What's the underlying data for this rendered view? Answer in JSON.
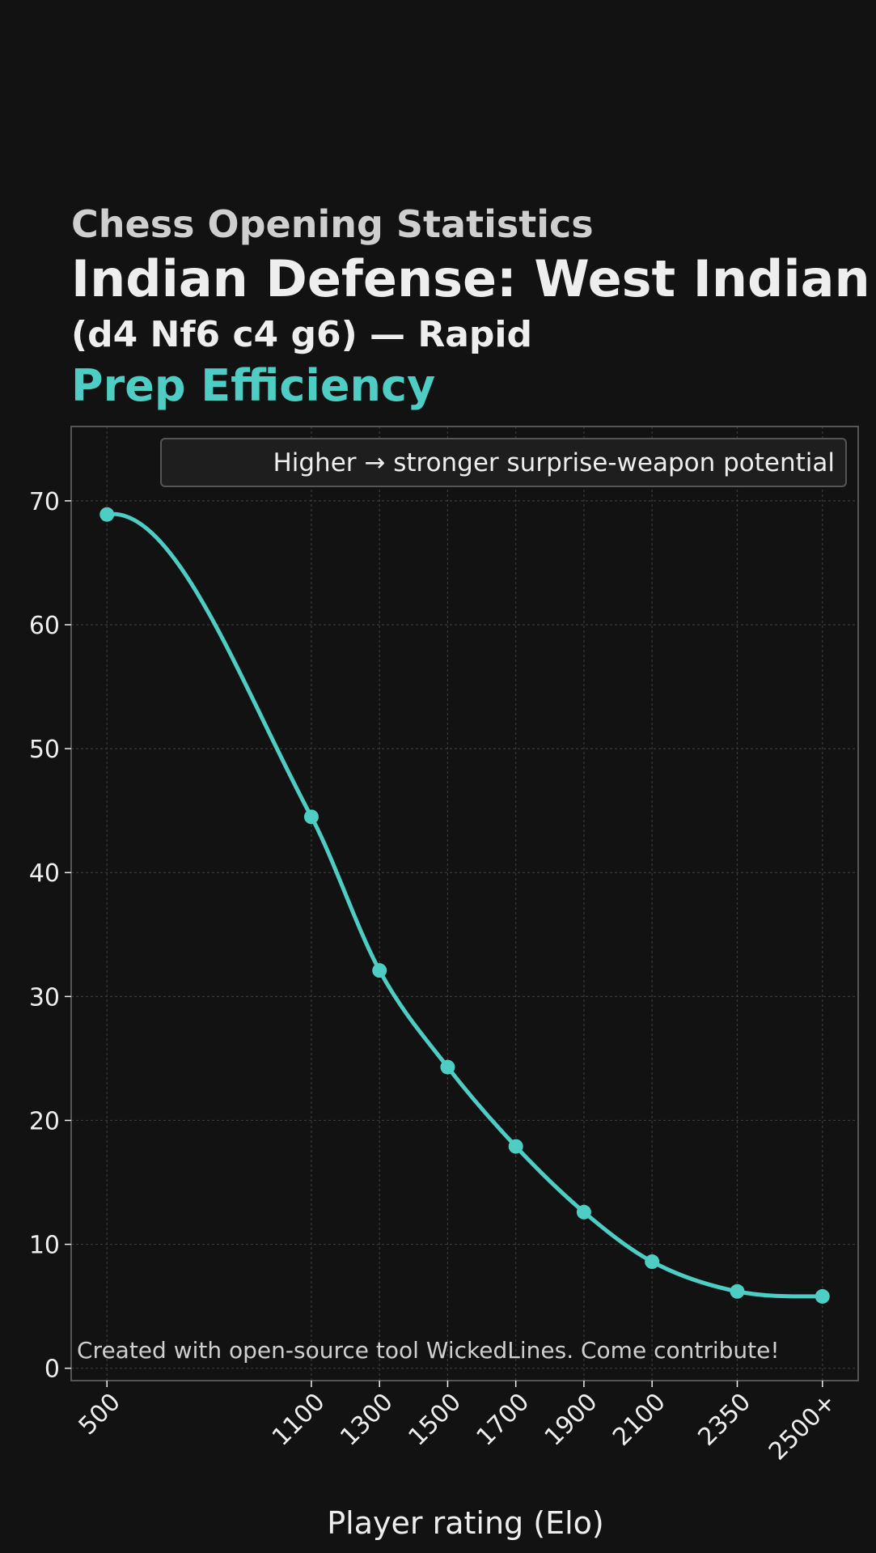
{
  "header": {
    "supertitle": "Chess Opening Statistics",
    "title": "Indian Defense: West Indian",
    "subtitle": "(d4 Nf6 c4 g6) — Rapid",
    "metric": "Prep Efficiency"
  },
  "colors": {
    "background": "#121212",
    "accent": "#4ecdc4",
    "grid": "#3a3a3a",
    "frame": "#555555",
    "text": "#eeeeee",
    "muted": "#cfcfcf"
  },
  "chart_data": {
    "type": "line",
    "x": [
      500,
      1100,
      1300,
      1500,
      1700,
      1900,
      2100,
      2350,
      2600
    ],
    "x_tick_labels": [
      "500",
      "1100",
      "1300",
      "1500",
      "1700",
      "1900",
      "2100",
      "2350",
      "2500+"
    ],
    "values": [
      68.9,
      44.5,
      32.1,
      24.3,
      17.9,
      12.6,
      8.6,
      6.2,
      5.8
    ],
    "xlabel": "Player rating (Elo)",
    "ylabel": "",
    "ylim": [
      -1,
      76
    ],
    "xlim": [
      395,
      2705
    ],
    "y_ticks": [
      0,
      10,
      20,
      30,
      40,
      50,
      60,
      70
    ],
    "grid": true,
    "smooth": true,
    "legend": {
      "text": "Higher → stronger surprise-weapon potential",
      "position": "top-right"
    },
    "annotation": "Created with open-source tool WickedLines. Come contribute!"
  }
}
